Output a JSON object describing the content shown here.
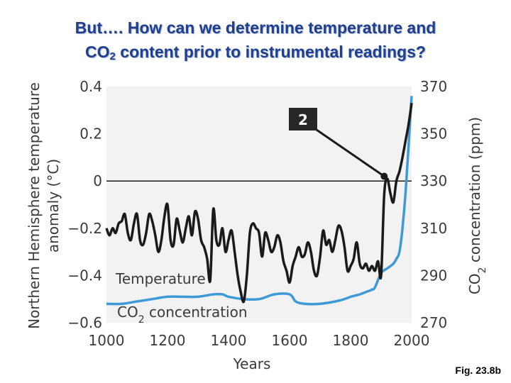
{
  "slide": {
    "title_line1": "But…. How can we determine temperature and",
    "title_line2_prefix": "CO",
    "title_line2_sub": "2",
    "title_line2_suffix": " content prior to instrumental readings?",
    "caption": "Fig. 23.8b"
  },
  "chart_data": {
    "type": "line",
    "xlabel": "Years",
    "ylabel": "Northern Hemisphere temperature anomaly (°C)",
    "ylabel_line1": "Northern Hemisphere temperature",
    "ylabel_line2": "anomaly (°C)",
    "y2label": "CO2 concentration (ppm)",
    "y2label_main": "CO",
    "y2label_sub": "2",
    "y2label_rest": " concentration (ppm)",
    "xlim": [
      1000,
      2000
    ],
    "ylim": [
      -0.6,
      0.4
    ],
    "y2lim": [
      270,
      370
    ],
    "x_ticks": [
      1000,
      1200,
      1400,
      1600,
      1800,
      2000
    ],
    "x_tick_labels": [
      "1000",
      "1200",
      "1400",
      "1600",
      "1800",
      "2000"
    ],
    "y_ticks": [
      0.4,
      0.2,
      0,
      -0.2,
      -0.4,
      -0.6
    ],
    "y_tick_labels": [
      "0.4",
      "0.2",
      "0",
      "−0.2",
      "−0.4",
      "−0.6"
    ],
    "y2_ticks": [
      370,
      350,
      330,
      310,
      290,
      270
    ],
    "y2_tick_labels": [
      "370",
      "350",
      "330",
      "310",
      "290",
      "270"
    ],
    "zero_line": 0,
    "annotation": {
      "label": "2",
      "x": 1910,
      "y": 0.02
    },
    "colors": {
      "temperature": "#1a1a1a",
      "co2": "#3d9ad6",
      "background": "#f2f2f2",
      "annotation_box": "#262626"
    },
    "series": [
      {
        "name": "Temperature",
        "axis": "left",
        "x": [
          1000,
          1010,
          1020,
          1030,
          1040,
          1050,
          1060,
          1070,
          1080,
          1090,
          1100,
          1110,
          1120,
          1130,
          1140,
          1150,
          1160,
          1170,
          1180,
          1190,
          1200,
          1210,
          1220,
          1230,
          1240,
          1250,
          1260,
          1270,
          1280,
          1290,
          1300,
          1310,
          1320,
          1330,
          1340,
          1350,
          1360,
          1370,
          1380,
          1390,
          1400,
          1410,
          1420,
          1430,
          1440,
          1450,
          1460,
          1470,
          1480,
          1490,
          1500,
          1510,
          1520,
          1530,
          1540,
          1550,
          1560,
          1570,
          1580,
          1590,
          1600,
          1610,
          1620,
          1630,
          1640,
          1650,
          1660,
          1670,
          1680,
          1690,
          1700,
          1710,
          1720,
          1730,
          1740,
          1750,
          1760,
          1770,
          1780,
          1790,
          1800,
          1810,
          1820,
          1830,
          1840,
          1850,
          1860,
          1870,
          1880,
          1890,
          1900,
          1910,
          1920,
          1930,
          1940,
          1950,
          1960,
          1970,
          1980,
          1990,
          2000
        ],
        "values": [
          -0.2,
          -0.23,
          -0.2,
          -0.22,
          -0.18,
          -0.17,
          -0.14,
          -0.22,
          -0.25,
          -0.18,
          -0.14,
          -0.25,
          -0.27,
          -0.22,
          -0.14,
          -0.17,
          -0.23,
          -0.3,
          -0.25,
          -0.15,
          -0.1,
          -0.25,
          -0.27,
          -0.16,
          -0.21,
          -0.26,
          -0.2,
          -0.15,
          -0.23,
          -0.13,
          -0.16,
          -0.25,
          -0.28,
          -0.33,
          -0.42,
          -0.12,
          -0.25,
          -0.27,
          -0.2,
          -0.3,
          -0.25,
          -0.21,
          -0.3,
          -0.4,
          -0.47,
          -0.51,
          -0.4,
          -0.22,
          -0.18,
          -0.2,
          -0.22,
          -0.32,
          -0.22,
          -0.25,
          -0.3,
          -0.28,
          -0.23,
          -0.26,
          -0.34,
          -0.38,
          -0.43,
          -0.36,
          -0.32,
          -0.28,
          -0.32,
          -0.31,
          -0.26,
          -0.3,
          -0.38,
          -0.4,
          -0.32,
          -0.21,
          -0.27,
          -0.25,
          -0.3,
          -0.25,
          -0.19,
          -0.21,
          -0.28,
          -0.38,
          -0.36,
          -0.33,
          -0.26,
          -0.35,
          -0.37,
          -0.35,
          -0.38,
          -0.36,
          -0.38,
          -0.34,
          -0.4,
          -0.06,
          0.01,
          -0.05,
          -0.09,
          0.0,
          0.04,
          0.1,
          0.17,
          0.24,
          0.33
        ]
      },
      {
        "name": "CO2 concentration",
        "label_main": "CO",
        "label_sub": "2",
        "label_rest": " concentration",
        "axis": "right",
        "x": [
          1000,
          1050,
          1100,
          1150,
          1200,
          1250,
          1300,
          1350,
          1380,
          1400,
          1450,
          1500,
          1550,
          1600,
          1620,
          1650,
          1700,
          1750,
          1780,
          1800,
          1830,
          1850,
          1870,
          1880,
          1900,
          1920,
          1940,
          1950,
          1960,
          1970,
          1980,
          1990,
          2000
        ],
        "values": [
          278,
          278,
          279,
          280,
          281,
          281,
          281,
          282,
          282,
          281,
          280,
          280,
          282,
          282,
          279,
          278,
          278,
          279,
          280,
          281,
          282,
          283,
          284,
          285,
          291,
          293,
          295,
          297,
          300,
          310,
          325,
          345,
          366
        ]
      }
    ]
  }
}
